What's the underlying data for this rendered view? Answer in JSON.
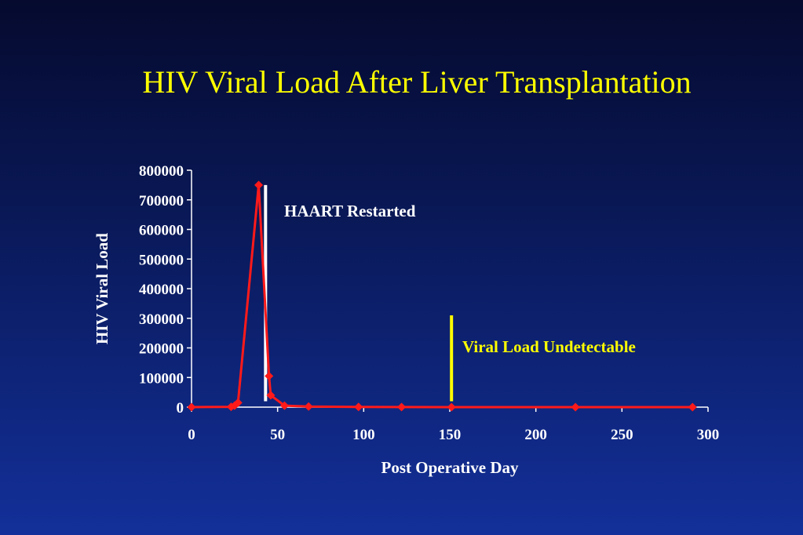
{
  "chart_data": {
    "type": "line",
    "title": "HIV Viral Load After Liver Transplantation",
    "xlabel": "Post Operative Day",
    "ylabel": "HIV Viral Load",
    "xlim": [
      0,
      300
    ],
    "ylim": [
      0,
      800000
    ],
    "xticks": [
      0,
      50,
      100,
      150,
      200,
      250,
      300
    ],
    "yticks": [
      0,
      100000,
      200000,
      300000,
      400000,
      500000,
      600000,
      700000,
      800000
    ],
    "grid": false,
    "legend": "none",
    "series": [
      {
        "color": "#ff1a1a",
        "points": [
          {
            "x": 0,
            "y": 0
          },
          {
            "x": 23,
            "y": 1000
          },
          {
            "x": 25,
            "y": 5000
          },
          {
            "x": 27,
            "y": 15000
          },
          {
            "x": 39,
            "y": 750000
          },
          {
            "x": 45,
            "y": 105000
          },
          {
            "x": 46,
            "y": 40000
          },
          {
            "x": 54,
            "y": 5000
          },
          {
            "x": 68,
            "y": 2000
          },
          {
            "x": 97,
            "y": 500
          },
          {
            "x": 122,
            "y": 200
          },
          {
            "x": 151,
            "y": 100
          },
          {
            "x": 223,
            "y": 50
          },
          {
            "x": 291,
            "y": 0
          }
        ]
      }
    ],
    "annotations": [
      {
        "text": "HAART Restarted",
        "x": 43,
        "y_top": 750000,
        "y_bottom": 20000,
        "line_color": "#ffffff",
        "text_color": "#ffffff"
      },
      {
        "text": "Viral Load Undetectable",
        "x": 151,
        "y_top": 310000,
        "y_bottom": 20000,
        "line_color": "#ffff00",
        "text_color": "#ffff00"
      }
    ],
    "colors": {
      "axis": "#ffffff",
      "title": "#ffff00",
      "labels": "#ffffff"
    }
  }
}
